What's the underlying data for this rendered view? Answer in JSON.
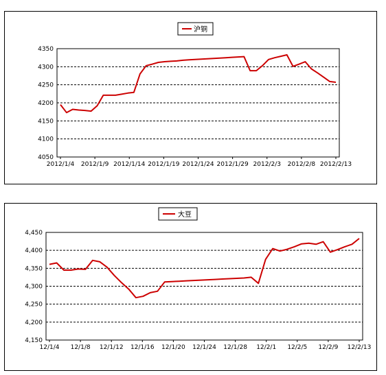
{
  "chart_data": [
    {
      "type": "line",
      "series": [
        {
          "name": "沪铜",
          "color": "#cc0000",
          "x_labels_shown": [
            "2012/1/4",
            "2012/1/9",
            "2012/1/14",
            "2012/1/19",
            "2012/1/24",
            "2012/1/29",
            "2012/2/3",
            "2012/2/8",
            "2012/2/13"
          ],
          "values": [
            4195,
            4173,
            4182,
            4180,
            4179,
            4177,
            4192,
            4221,
            4221,
            4221,
            4224,
            4227,
            4229,
            4280,
            4303,
            4307,
            4312,
            4314,
            4315,
            4316,
            4318,
            4319,
            4320,
            4321,
            4322,
            4323,
            4324,
            4325,
            4326,
            4327,
            4328,
            4289,
            4289,
            4303,
            4320,
            4325,
            4329,
            4333,
            4301,
            4307,
            4314,
            4294,
            4283,
            4271,
            4259,
            4257
          ]
        }
      ],
      "ylim": [
        4050,
        4350
      ],
      "yticks": [
        "4350",
        "4300",
        "4250",
        "4200",
        "4150",
        "4100",
        "4050"
      ],
      "xticks": [
        "2012/1/4",
        "2012/1/9",
        "2012/1/14",
        "2012/1/19",
        "2012/1/24",
        "2012/1/29",
        "2012/2/3",
        "2012/2/8",
        "2012/2/13"
      ],
      "grid": "horizontal-dashed",
      "legend_position": "top-center"
    },
    {
      "type": "line",
      "series": [
        {
          "name": "大豆",
          "color": "#cc0000",
          "values": [
            4361,
            4365,
            4345,
            4345,
            4348,
            4347,
            4372,
            4368,
            4353,
            4330,
            4310,
            4292,
            4268,
            4272,
            4282,
            4286,
            4312,
            4313,
            4314,
            4315,
            4316,
            4317,
            4318,
            4319,
            4320,
            4321,
            4322,
            4323,
            4325,
            4308,
            4375,
            4405,
            4398,
            4403,
            4410,
            4418,
            4420,
            4417,
            4424,
            4395,
            4402,
            4410,
            4417,
            4433
          ]
        }
      ],
      "ylim": [
        4150,
        4450
      ],
      "yticks": [
        "4,450",
        "4,400",
        "4,350",
        "4,300",
        "4,250",
        "4,200",
        "4,150"
      ],
      "xticks": [
        "12/1/4",
        "12/1/8",
        "12/1/12",
        "12/1/16",
        "12/1/20",
        "12/1/24",
        "12/1/28",
        "12/2/1",
        "12/2/5",
        "12/2/9",
        "12/2/13"
      ],
      "grid": "horizontal-dashed",
      "legend_position": "top-center"
    }
  ]
}
